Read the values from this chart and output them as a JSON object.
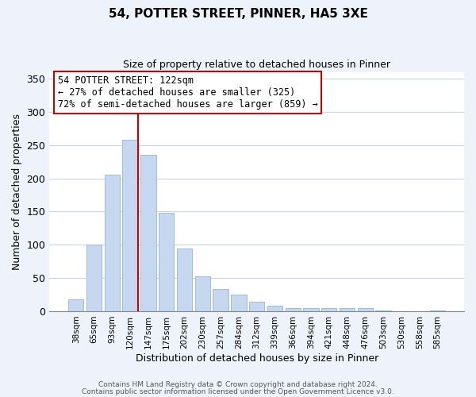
{
  "title": "54, POTTER STREET, PINNER, HA5 3XE",
  "subtitle": "Size of property relative to detached houses in Pinner",
  "xlabel": "Distribution of detached houses by size in Pinner",
  "ylabel": "Number of detached properties",
  "bar_labels": [
    "38sqm",
    "65sqm",
    "93sqm",
    "120sqm",
    "147sqm",
    "175sqm",
    "202sqm",
    "230sqm",
    "257sqm",
    "284sqm",
    "312sqm",
    "339sqm",
    "366sqm",
    "394sqm",
    "421sqm",
    "448sqm",
    "476sqm",
    "503sqm",
    "530sqm",
    "558sqm",
    "585sqm"
  ],
  "bar_values": [
    18,
    100,
    205,
    258,
    235,
    148,
    94,
    53,
    33,
    25,
    14,
    8,
    5,
    5,
    5,
    5,
    5,
    1,
    0,
    0,
    1
  ],
  "bar_color": "#c5d8f0",
  "bar_edge_color": "#a0bcd8",
  "vline_x_index": 3,
  "vline_color": "#cc0000",
  "ylim": [
    0,
    360
  ],
  "yticks": [
    0,
    50,
    100,
    150,
    200,
    250,
    300,
    350
  ],
  "annotation_title": "54 POTTER STREET: 122sqm",
  "annotation_line1": "← 27% of detached houses are smaller (325)",
  "annotation_line2": "72% of semi-detached houses are larger (859) →",
  "annotation_box_color": "#ffffff",
  "annotation_box_edge": "#cc0000",
  "footer1": "Contains HM Land Registry data © Crown copyright and database right 2024.",
  "footer2": "Contains public sector information licensed under the Open Government Licence v3.0.",
  "bg_color": "#eef2fb",
  "plot_bg_color": "#ffffff",
  "grid_color": "#c8d4e8"
}
